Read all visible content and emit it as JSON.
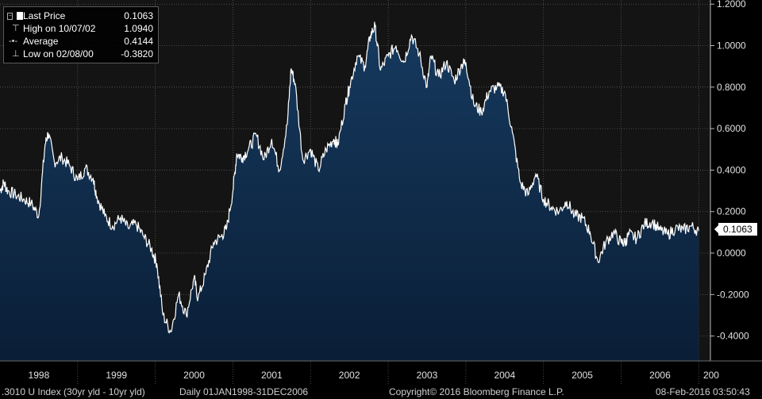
{
  "colors": {
    "background": "#000000",
    "plot_background": "#141414",
    "area_fill_top": "#163a5f",
    "area_fill_bottom": "#0a1e36",
    "line": "#ffffff",
    "grid": "#555555",
    "last_price_tag_bg": "#ffffff",
    "last_price_tag_text": "#000000"
  },
  "legend": {
    "rows": [
      {
        "icon": "white-square-icon",
        "label": "Last Price",
        "value": "0.1063"
      },
      {
        "icon": "high-marker-icon",
        "label": "High on 10/07/02",
        "value": "1.0940"
      },
      {
        "icon": "average-line-icon",
        "label": "Average",
        "value": "0.4144"
      },
      {
        "icon": "low-marker-icon",
        "label": "Low on 02/08/00",
        "value": "-0.3820"
      }
    ]
  },
  "last_price_tag": "0.1063",
  "footer": {
    "index": ".3010 U Index (30yr yld - 10yr yld)",
    "range": "Daily 01JAN1998-31DEC2006",
    "copyright": "Copyright© 2016 Bloomberg Finance L.P.",
    "timestamp": "08-Feb-2016 03:50:43"
  },
  "chart_data": {
    "type": "area",
    "title": "",
    "xlabel": "",
    "ylabel": "",
    "x_range": [
      1998.0,
      2007.15
    ],
    "ylim": [
      -0.52,
      1.22
    ],
    "y_ticks": [
      "1.2000",
      "1.0000",
      "0.8000",
      "0.6000",
      "0.4000",
      "0.2000",
      "0.0000",
      "-0.2000",
      "-0.4000"
    ],
    "y_tick_values": [
      1.2,
      1.0,
      0.8,
      0.6,
      0.4,
      0.2,
      0.0,
      -0.2,
      -0.4
    ],
    "x_tick_labels": [
      "1998",
      "1999",
      "2000",
      "2001",
      "2002",
      "2003",
      "2004",
      "2005",
      "2006",
      "200"
    ],
    "x_tick_centers": [
      1998.5,
      1999.5,
      2000.5,
      2001.5,
      2002.5,
      2003.5,
      2004.5,
      2005.5,
      2006.5,
      2007.16
    ],
    "year_boundaries": [
      1999,
      2000,
      2001,
      2002,
      2003,
      2004,
      2005,
      2006,
      2007
    ],
    "grid": true,
    "legend_position": "top-left",
    "series": [
      {
        "name": "Last Price",
        "x": [
          1998.0,
          1998.05,
          1998.1,
          1998.2,
          1998.3,
          1998.4,
          1998.5,
          1998.58,
          1998.62,
          1998.7,
          1998.8,
          1998.9,
          1999.0,
          1999.1,
          1999.2,
          1999.25,
          1999.35,
          1999.45,
          1999.55,
          1999.65,
          1999.75,
          1999.85,
          1999.95,
          2000.02,
          2000.1,
          2000.2,
          2000.3,
          2000.4,
          2000.5,
          2000.55,
          2000.65,
          2000.75,
          2000.85,
          2000.92,
          2001.0,
          2001.05,
          2001.12,
          2001.2,
          2001.3,
          2001.4,
          2001.5,
          2001.6,
          2001.7,
          2001.75,
          2001.8,
          2001.9,
          2002.0,
          2002.1,
          2002.2,
          2002.3,
          2002.35,
          2002.45,
          2002.5,
          2002.6,
          2002.7,
          2002.77,
          2002.83,
          2002.9,
          2003.0,
          2003.1,
          2003.2,
          2003.3,
          2003.4,
          2003.5,
          2003.55,
          2003.65,
          2003.75,
          2003.85,
          2003.95,
          2004.0,
          2004.1,
          2004.2,
          2004.3,
          2004.4,
          2004.5,
          2004.6,
          2004.7,
          2004.8,
          2004.9,
          2005.0,
          2005.1,
          2005.2,
          2005.3,
          2005.4,
          2005.5,
          2005.6,
          2005.7,
          2005.8,
          2005.9,
          2006.0,
          2006.05,
          2006.1,
          2006.2,
          2006.3,
          2006.4,
          2006.5,
          2006.6,
          2006.7,
          2006.8,
          2006.9,
          2007.0
        ],
        "y": [
          0.3,
          0.34,
          0.3,
          0.28,
          0.26,
          0.24,
          0.18,
          0.52,
          0.58,
          0.44,
          0.46,
          0.42,
          0.35,
          0.41,
          0.36,
          0.27,
          0.18,
          0.13,
          0.17,
          0.12,
          0.14,
          0.08,
          0.02,
          -0.05,
          -0.3,
          -0.38,
          -0.2,
          -0.3,
          -0.12,
          -0.22,
          -0.1,
          0.05,
          0.08,
          0.12,
          0.3,
          0.48,
          0.46,
          0.5,
          0.57,
          0.45,
          0.55,
          0.4,
          0.62,
          0.89,
          0.82,
          0.45,
          0.5,
          0.4,
          0.5,
          0.55,
          0.52,
          0.72,
          0.8,
          0.95,
          0.9,
          1.05,
          1.094,
          0.88,
          0.95,
          1.0,
          0.92,
          1.05,
          0.96,
          0.8,
          0.95,
          0.85,
          0.92,
          0.83,
          0.91,
          0.92,
          0.72,
          0.68,
          0.78,
          0.8,
          0.78,
          0.58,
          0.34,
          0.28,
          0.38,
          0.26,
          0.22,
          0.2,
          0.25,
          0.18,
          0.17,
          0.1,
          -0.04,
          0.05,
          0.1,
          0.05,
          0.05,
          0.09,
          0.07,
          0.14,
          0.15,
          0.11,
          0.09,
          0.12,
          0.11,
          0.13,
          0.1063
        ]
      }
    ],
    "annotations": [
      {
        "label": "High on 10/07/02",
        "x": 2002.77,
        "y": 1.094
      },
      {
        "label": "Low on 02/08/00",
        "x": 2000.11,
        "y": -0.382
      },
      {
        "label": "Average",
        "y": 0.4144
      }
    ]
  }
}
